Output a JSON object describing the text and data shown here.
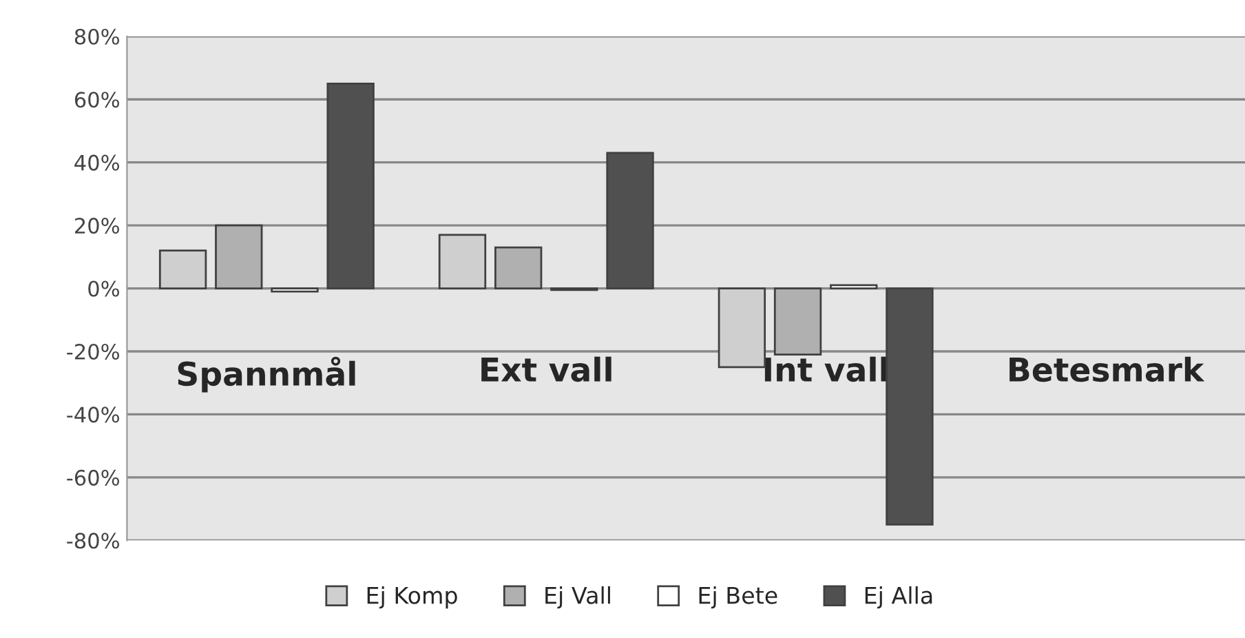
{
  "chart_data": {
    "type": "bar",
    "categories": [
      "Spannmål",
      "Ext vall",
      "Int vall",
      "Betesmark"
    ],
    "series": [
      {
        "name": "Ej Komp",
        "color": "#cfcfcf",
        "values": [
          12,
          17,
          -25,
          null
        ]
      },
      {
        "name": "Ej Vall",
        "color": "#b0b0b0",
        "values": [
          20,
          13,
          -21,
          null
        ]
      },
      {
        "name": "Ej Bete",
        "color": "#ffffff",
        "values": [
          -1,
          -0.5,
          1,
          null
        ]
      },
      {
        "name": "Ej Alla",
        "color": "#505050",
        "values": [
          65,
          43,
          -75,
          null
        ]
      }
    ],
    "ylim": [
      -80,
      80
    ],
    "yticks": [
      {
        "value": -80,
        "label": "-80%"
      },
      {
        "value": -60,
        "label": "-60%"
      },
      {
        "value": -40,
        "label": "-40%"
      },
      {
        "value": -20,
        "label": "-20%"
      },
      {
        "value": 0,
        "label": "0%"
      },
      {
        "value": 20,
        "label": "20%"
      },
      {
        "value": 40,
        "label": "40%"
      },
      {
        "value": 60,
        "label": "60%"
      },
      {
        "value": 80,
        "label": "80%"
      }
    ],
    "grid": "y",
    "legend": "bottom"
  }
}
